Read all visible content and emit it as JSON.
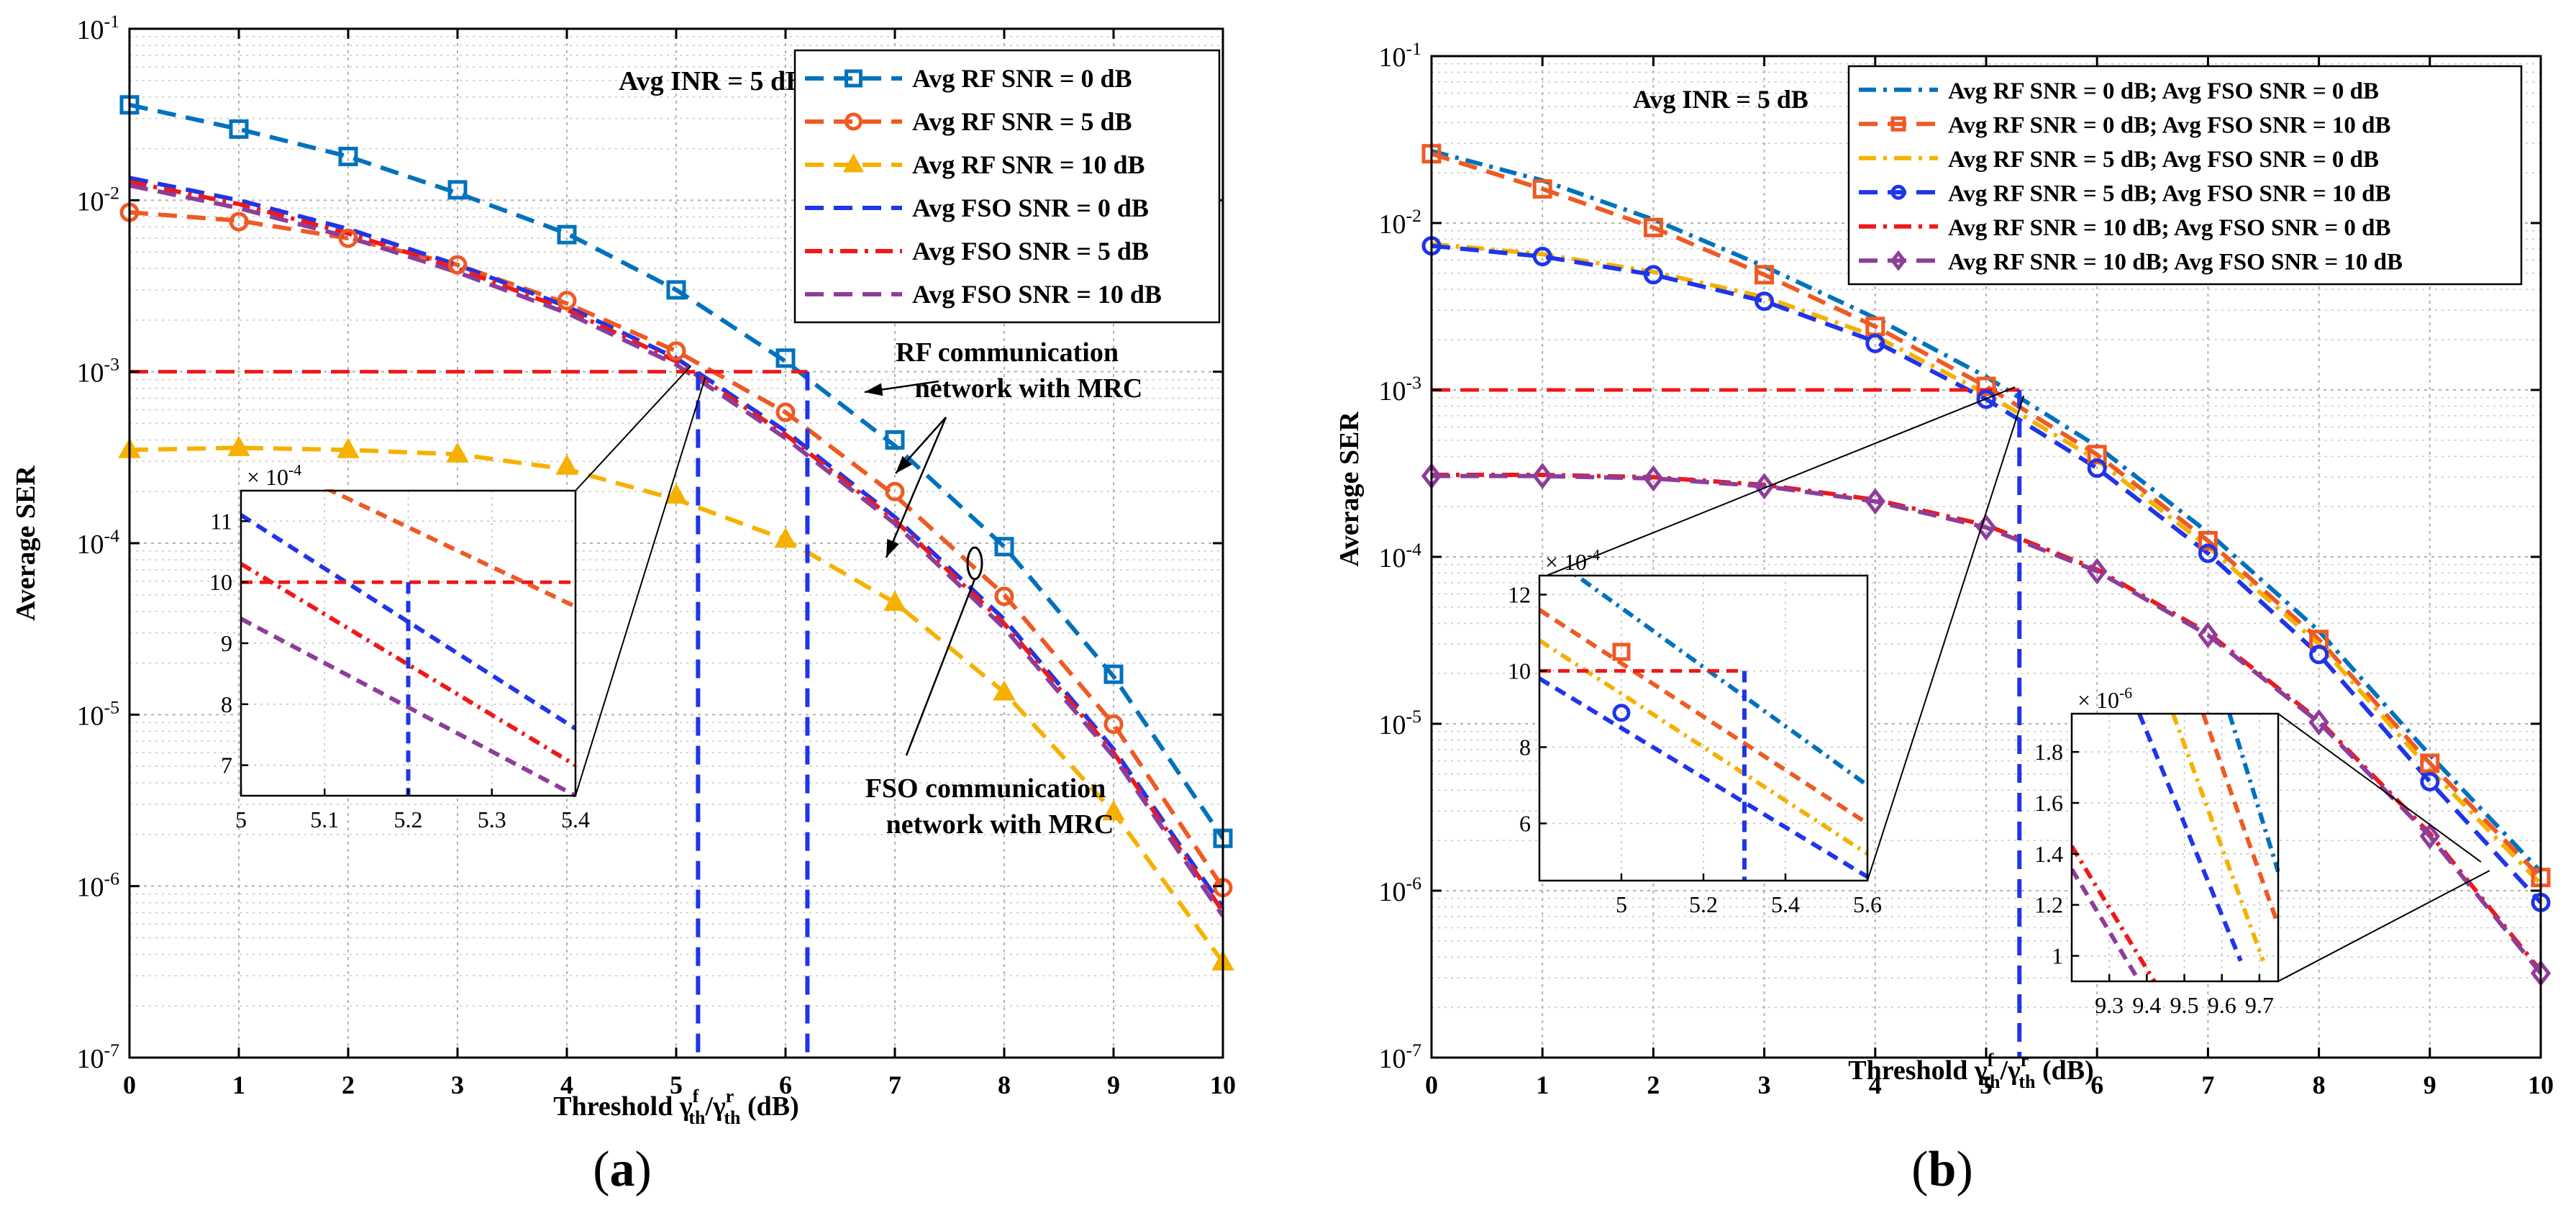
{
  "chart_data": [
    {
      "type": "line",
      "yscale": "log",
      "x": [
        0,
        1,
        2,
        3,
        4,
        5,
        6,
        7,
        8,
        9,
        10
      ],
      "xlim": [
        0,
        10
      ],
      "ylim": [
        1e-07,
        0.1
      ],
      "xticks": [
        "0",
        "1",
        "2",
        "3",
        "4",
        "5",
        "6",
        "7",
        "8",
        "9",
        "10"
      ],
      "yticks": [
        {
          "base": "10",
          "exp": "-1"
        },
        {
          "base": "10",
          "exp": "-2"
        },
        {
          "base": "10",
          "exp": "-3"
        },
        {
          "base": "10",
          "exp": "-4"
        },
        {
          "base": "10",
          "exp": "-5"
        },
        {
          "base": "10",
          "exp": "-6"
        },
        {
          "base": "10",
          "exp": "-7"
        }
      ],
      "xlabel": {
        "main": "Threshold γ",
        "sup1": "f",
        "sub1": "th",
        "sep": "/γ",
        "sup2": "r",
        "sub2": "th",
        "unit": "(dB)"
      },
      "ylabel": "Average  SER",
      "panel_label": {
        "open": "(",
        "letter": "a",
        "close": ")"
      },
      "annotation": "Avg INR = 5 dB",
      "target_ser": 0.001,
      "crossings": [
        5.2,
        6.2
      ],
      "series": [
        {
          "name": "Avg RF SNR = 0 dB",
          "color": "#0072BD",
          "dash": "dash",
          "marker": "square",
          "curve": [
            0.036,
            0.026,
            0.018,
            0.011,
            0.0064,
            0.003,
            0.00115,
            0.00037,
            9.55e-05,
            1.67e-05,
            1.9e-06
          ],
          "markers": [
            0.036,
            0.026,
            0.018,
            0.0115,
            0.0063,
            0.003,
            0.0012,
            0.0004,
            9.55e-05,
            1.72e-05,
            1.9e-06
          ]
        },
        {
          "name": "Avg RF SNR = 5 dB",
          "color": "#EE5A24",
          "dash": "dash",
          "marker": "circle",
          "curve": [
            0.0085,
            0.0076,
            0.006,
            0.0042,
            0.0025,
            0.00132,
            0.00058,
            0.00019,
            5e-05,
            8.8e-06,
            9.8e-07
          ],
          "markers": [
            0.0085,
            0.0075,
            0.006,
            0.0042,
            0.0026,
            0.00132,
            0.00058,
            0.0002,
            4.9e-05,
            8.8e-06,
            9.8e-07
          ]
        },
        {
          "name": "Avg RF SNR = 10 dB",
          "color": "#F6B100",
          "dash": "dash",
          "marker": "triangle",
          "curve": [
            0.00035,
            0.00036,
            0.00035,
            0.00033,
            0.00027,
            0.00018,
            0.000105,
            4.5e-05,
            1.35e-05,
            2.7e-06,
            3.6e-07
          ],
          "markers": [
            0.00035,
            0.00036,
            0.00035,
            0.00033,
            0.00028,
            0.00019,
            0.000105,
            4.5e-05,
            1.35e-05,
            2.7e-06,
            3.6e-07
          ]
        },
        {
          "name": "Avg FSO SNR = 0 dB",
          "color": "#1F35E8",
          "dash": "dash",
          "marker": "none",
          "curve": [
            0.0135,
            0.01,
            0.0068,
            0.0042,
            0.0024,
            0.0012,
            0.00045,
            0.000142,
            3.6e-05,
            6.3e-06,
            7.5e-07
          ]
        },
        {
          "name": "Avg FSO SNR = 5 dB",
          "color": "#F01818",
          "dash": "dashdot",
          "marker": "none",
          "curve": [
            0.0128,
            0.0095,
            0.0064,
            0.004,
            0.0023,
            0.00115,
            0.00043,
            0.000136,
            3.4e-05,
            6e-06,
            7.1e-07
          ]
        },
        {
          "name": "Avg FSO SNR = 10 dB",
          "color": "#8E3D9A",
          "dash": "dash",
          "marker": "none",
          "curve": [
            0.0122,
            0.009,
            0.0061,
            0.0038,
            0.0022,
            0.0011,
            0.00041,
            0.00013,
            3.2e-05,
            5.7e-06,
            6.7e-07
          ]
        }
      ],
      "text_annotations": [
        {
          "lines": [
            "RF communication",
            "network with MRC"
          ]
        },
        {
          "lines": [
            "FSO communication",
            "network with MRC"
          ]
        }
      ],
      "inset": {
        "xlim": [
          5,
          5.4
        ],
        "ylim": [
          6.5,
          11.5
        ],
        "xticks": [
          "5",
          "5.1",
          "5.2",
          "5.3",
          "5.4"
        ],
        "yticks": [
          {
            "v": 7,
            "t": "7"
          },
          {
            "v": 8,
            "t": "8"
          },
          {
            "v": 9,
            "t": "9"
          },
          {
            "v": 10,
            "t": "10"
          },
          {
            "v": 11,
            "t": "11"
          }
        ],
        "scale": {
          "base": "× 10",
          "exp": "-4"
        },
        "lines": [
          {
            "color": "#EE5A24",
            "dash": "dash",
            "x1": 5.0,
            "y1": 12.2,
            "x2": 5.4,
            "y2": 9.6
          },
          {
            "color": "#1F35E8",
            "dash": "dash",
            "x1": 5.0,
            "y1": 11.1,
            "x2": 5.4,
            "y2": 7.6
          },
          {
            "color": "#F01818",
            "dash": "dashdot",
            "x1": 5.0,
            "y1": 10.3,
            "x2": 5.4,
            "y2": 7.0
          },
          {
            "color": "#8E3D9A",
            "dash": "dash",
            "x1": 5.0,
            "y1": 9.4,
            "x2": 5.4,
            "y2": 6.5
          }
        ],
        "hline": 10,
        "vline": 5.2,
        "hline_end": 5.4
      }
    },
    {
      "type": "line",
      "yscale": "log",
      "x": [
        0,
        1,
        2,
        3,
        4,
        5,
        6,
        7,
        8,
        9,
        10
      ],
      "xlim": [
        0,
        10
      ],
      "ylim": [
        1e-07,
        0.1
      ],
      "xticks": [
        "0",
        "1",
        "2",
        "3",
        "4",
        "5",
        "6",
        "7",
        "8",
        "9",
        "10"
      ],
      "yticks": [
        {
          "base": "10",
          "exp": "-1"
        },
        {
          "base": "10",
          "exp": "-2"
        },
        {
          "base": "10",
          "exp": "-3"
        },
        {
          "base": "10",
          "exp": "-4"
        },
        {
          "base": "10",
          "exp": "-5"
        },
        {
          "base": "10",
          "exp": "-6"
        },
        {
          "base": "10",
          "exp": "-7"
        }
      ],
      "xlabel": {
        "main": "Threshold γ",
        "sup1": "f",
        "sub1": "th",
        "sep": "/γ",
        "sup2": "r",
        "sub2": "th",
        "unit": "(dB)"
      },
      "ylabel": "Average  SER",
      "panel_label": {
        "open": "(",
        "letter": "b",
        "close": ")"
      },
      "annotation": "Avg INR = 5 dB",
      "target_ser": 0.001,
      "crossings": [
        5.3
      ],
      "series": [
        {
          "name": "Avg RF SNR = 0 dB; Avg FSO SNR = 0 dB",
          "color": "#0072BD",
          "dash": "dashdot",
          "marker": "none",
          "curve": [
            0.027,
            0.018,
            0.0105,
            0.0055,
            0.0027,
            0.0012,
            0.00046,
            0.00014,
            3.6e-05,
            6.5e-06,
            1.3e-06
          ]
        },
        {
          "name": "Avg RF SNR = 0 dB;  Avg FSO SNR = 10 dB",
          "color": "#EE5A24",
          "dash": "dash",
          "marker": "square",
          "curve": [
            0.026,
            0.016,
            0.0094,
            0.0049,
            0.0024,
            0.00105,
            0.00041,
            0.000125,
            3.2e-05,
            5.8e-06,
            1.2e-06
          ],
          "markers": [
            0.026,
            0.016,
            0.0094,
            0.0049,
            0.0024,
            0.00105,
            0.00041,
            0.000125,
            3.2e-05,
            5.8e-06,
            1.2e-06
          ]
        },
        {
          "name": "Avg RF SNR = 5 dB; Avg FSO SNR = 0 dB",
          "color": "#F6B100",
          "dash": "dashdot",
          "marker": "none",
          "curve": [
            0.0075,
            0.0065,
            0.0051,
            0.0036,
            0.0021,
            0.00095,
            0.00038,
            0.000115,
            3e-05,
            5.3e-06,
            1.1e-06
          ]
        },
        {
          "name": "Avg RF SNR = 5 dB; Avg FSO SNR = 10 dB",
          "color": "#1F35E8",
          "dash": "dash",
          "marker": "circle",
          "curve": [
            0.0073,
            0.0063,
            0.0049,
            0.0034,
            0.00195,
            0.00088,
            0.00034,
            0.000105,
            2.6e-05,
            4.5e-06,
            8.5e-07
          ],
          "markers": [
            0.0073,
            0.0063,
            0.0049,
            0.0034,
            0.0019,
            0.00088,
            0.00034,
            0.000105,
            2.6e-05,
            4.5e-06,
            8.5e-07
          ]
        },
        {
          "name": "Avg RF SNR = 10 dB; Avg FSO SNR = 0 dB",
          "color": "#F01818",
          "dash": "dashdot",
          "marker": "none",
          "curve": [
            0.00031,
            0.00031,
            0.0003,
            0.00027,
            0.00022,
            0.000155,
            8.4e-05,
            3.5e-05,
            1.05e-05,
            2.2e-06,
            3.3e-07
          ]
        },
        {
          "name": "Avg RF SNR = 10 dB; Avg FSO SNR = 10 dB",
          "color": "#8E3D9A",
          "dash": "dash",
          "marker": "diamond",
          "curve": [
            0.000305,
            0.000305,
            0.000295,
            0.000265,
            0.000215,
            0.00015,
            8.2e-05,
            3.4e-05,
            1.02e-05,
            2.12e-06,
            3.2e-07
          ],
          "markers": [
            0.000305,
            0.000305,
            0.000295,
            0.000265,
            0.000215,
            0.00015,
            8.2e-05,
            3.4e-05,
            1.02e-05,
            2.12e-06,
            3.2e-07
          ]
        }
      ],
      "inset1": {
        "xlim": [
          4.8,
          5.6
        ],
        "ylim": [
          4.5,
          12.5
        ],
        "xticks": [
          {
            "v": 5,
            "t": "5"
          },
          {
            "v": 5.2,
            "t": "5.2"
          },
          {
            "v": 5.4,
            "t": "5.4"
          },
          {
            "v": 5.6,
            "t": "5.6"
          }
        ],
        "yticks": [
          {
            "v": 6,
            "t": "6"
          },
          {
            "v": 8,
            "t": "8"
          },
          {
            "v": 10,
            "t": "10"
          },
          {
            "v": 12,
            "t": "12"
          }
        ],
        "scale": {
          "base": "× 10",
          "exp": "-4"
        },
        "lines": [
          {
            "color": "#0072BD",
            "dash": "dashdot",
            "x1": 4.8,
            "y1": 13.2,
            "x2": 5.6,
            "y2": 7.0
          },
          {
            "color": "#EE5A24",
            "dash": "dash",
            "x1": 4.8,
            "y1": 11.6,
            "x2": 5.6,
            "y2": 6.0
          },
          {
            "color": "#F6B100",
            "dash": "dashdot",
            "x1": 4.8,
            "y1": 10.8,
            "x2": 5.6,
            "y2": 5.2
          },
          {
            "color": "#1F35E8",
            "dash": "dash",
            "x1": 4.8,
            "y1": 9.8,
            "x2": 5.6,
            "y2": 4.6
          }
        ],
        "markers": [
          {
            "shape": "square",
            "color": "#EE5A24",
            "x": 5.0,
            "y": 10.5
          },
          {
            "shape": "circle",
            "color": "#1F35E8",
            "x": 5.0,
            "y": 8.9
          }
        ],
        "hline": 10,
        "vline": 5.3
      },
      "inset2": {
        "xlim": [
          9.2,
          9.75
        ],
        "ylim": [
          0.9,
          1.95
        ],
        "xticks": [
          {
            "v": 9.3,
            "t": "9.3"
          },
          {
            "v": 9.4,
            "t": "9.4"
          },
          {
            "v": 9.5,
            "t": "9.5"
          },
          {
            "v": 9.6,
            "t": "9.6"
          },
          {
            "v": 9.7,
            "t": "9.7"
          }
        ],
        "yticks": [
          {
            "v": 1,
            "t": "1"
          },
          {
            "v": 1.2,
            "t": "1.2"
          },
          {
            "v": 1.4,
            "t": "1.4"
          },
          {
            "v": 1.6,
            "t": "1.6"
          },
          {
            "v": 1.8,
            "t": "1.8"
          }
        ],
        "scale": {
          "base": "× 10",
          "exp": "-6"
        },
        "lines": [
          {
            "color": "#0072BD",
            "dash": "dashdot",
            "x1": 9.62,
            "y1": 1.95,
            "x2": 9.75,
            "y2": 1.33
          },
          {
            "color": "#EE5A24",
            "dash": "dash",
            "x1": 9.55,
            "y1": 1.95,
            "x2": 9.75,
            "y2": 1.12
          },
          {
            "color": "#F6B100",
            "dash": "dashdot",
            "x1": 9.47,
            "y1": 1.95,
            "x2": 9.71,
            "y2": 0.98
          },
          {
            "color": "#1F35E8",
            "dash": "dash",
            "x1": 9.38,
            "y1": 1.95,
            "x2": 9.65,
            "y2": 0.98
          },
          {
            "color": "#F01818",
            "dash": "dashdot",
            "x1": 9.2,
            "y1": 1.43,
            "x2": 9.42,
            "y2": 0.9
          },
          {
            "color": "#8E3D9A",
            "dash": "dash",
            "x1": 9.2,
            "y1": 1.34,
            "x2": 9.38,
            "y2": 0.9
          }
        ]
      }
    }
  ]
}
